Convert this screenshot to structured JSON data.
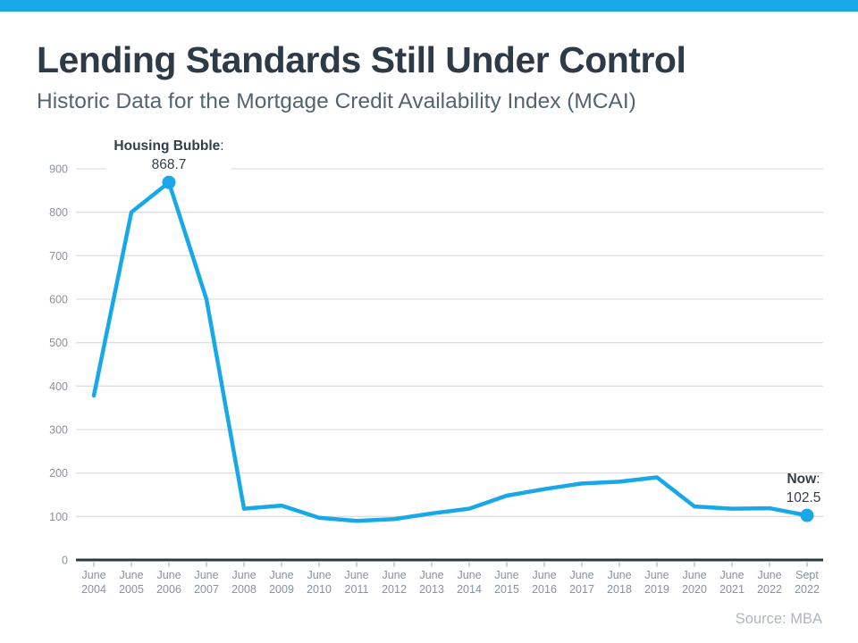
{
  "header": {
    "title": "Lending Standards Still Under Control",
    "subtitle": "Historic Data for the Mortgage Credit Availability Index (MCAI)"
  },
  "footer": {
    "source": "Source: MBA"
  },
  "theme": {
    "accent_blue": "#18a8e8",
    "topbar_color": "#18a8e8",
    "title_color": "#2e3b46",
    "subtitle_color": "#54646e",
    "grid_color": "#dddfe3",
    "axis_color": "#2b3845",
    "tick_color": "#98a2ac",
    "y_label_color": "#8a939b",
    "x_label_color": "#8593a3",
    "annotation_color": "#333e48",
    "source_color": "#adb7bf"
  },
  "chart_data": {
    "type": "line",
    "title": "Historic Data for the Mortgage Credit Availability Index (MCAI)",
    "xlabel": "",
    "ylabel": "",
    "ylim": [
      0,
      900
    ],
    "ytick_step": 100,
    "grid": true,
    "legend": "none",
    "categories": [
      "June 2004",
      "June 2005",
      "June 2006",
      "June 2007",
      "June 2008",
      "June 2009",
      "June 2010",
      "June 2011",
      "June 2012",
      "June 2013",
      "June 2014",
      "June 2015",
      "June 2016",
      "June 2017",
      "June 2018",
      "June 2019",
      "June 2020",
      "June 2021",
      "June 2022",
      "Sept 2022"
    ],
    "series": [
      {
        "name": "MCAI",
        "values": [
          378,
          800,
          868.7,
          600,
          118,
          125,
          97,
          90,
          94,
          107,
          118,
          148,
          163,
          176,
          180,
          190,
          123,
          118,
          119,
          102.5
        ]
      }
    ],
    "annotations": [
      {
        "index": 2,
        "label": "Housing Bubble",
        "suffix": ":",
        "value": "868.7",
        "marker": true,
        "masks_gridline": true
      },
      {
        "index": 19,
        "label": "Now",
        "suffix": ":",
        "value": "102.5",
        "marker": true,
        "masks_gridline": false
      }
    ]
  }
}
